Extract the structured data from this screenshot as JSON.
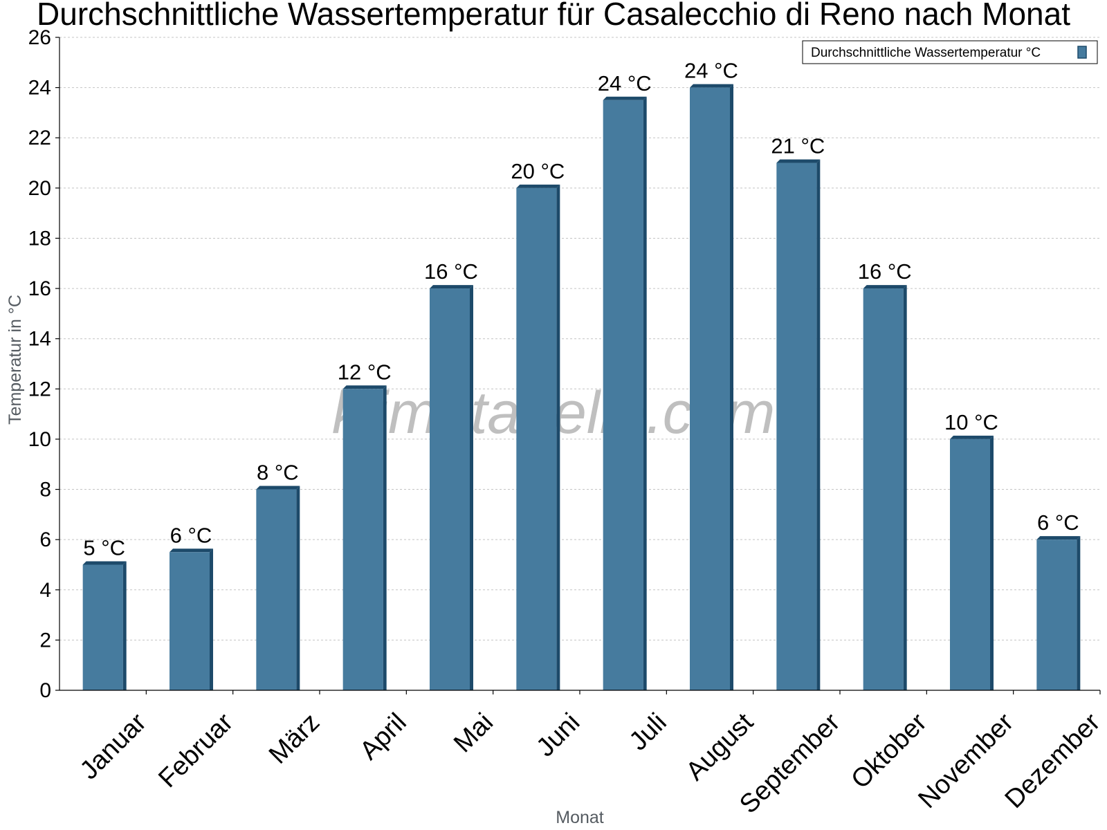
{
  "chart_data": {
    "type": "bar",
    "title": "Durchschnittliche Wassertemperatur für Casalecchio di Reno nach Monat",
    "xlabel": "Monat",
    "ylabel": "Temperatur in °C",
    "categories": [
      "Januar",
      "Februar",
      "März",
      "April",
      "Mai",
      "Juni",
      "Juli",
      "August",
      "September",
      "Oktober",
      "November",
      "Dezember"
    ],
    "series": [
      {
        "name": "Durchschnittliche Wassertemperatur °C",
        "values": [
          5,
          5.5,
          8,
          12,
          16,
          20,
          23.5,
          24,
          21,
          16,
          10,
          6
        ],
        "labels": [
          "5 °C",
          "6 °C",
          "8 °C",
          "12 °C",
          "16 °C",
          "20 °C",
          "24 °C",
          "24 °C",
          "21 °C",
          "16 °C",
          "10 °C",
          "6 °C"
        ],
        "color": "#467b9e",
        "edge_color": "#1d4a6a"
      }
    ],
    "ylim": [
      0,
      26
    ],
    "yticks": [
      0,
      2,
      4,
      6,
      8,
      10,
      12,
      14,
      16,
      18,
      20,
      22,
      24,
      26
    ],
    "grid": true,
    "legend_position": "top-right"
  },
  "watermark": "klimatabelle.com"
}
